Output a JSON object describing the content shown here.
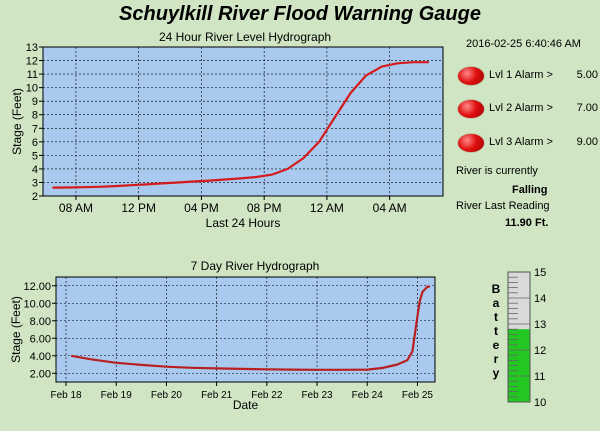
{
  "title": "Schuylkill River Flood Warning Gauge",
  "datetime": "2016-02-25 6:40:46 AM",
  "alarms": [
    {
      "label": "Lvl 1 Alarm >",
      "value": "5.00",
      "color": "#e01010"
    },
    {
      "label": "Lvl 2 Alarm >",
      "value": "7.00",
      "color": "#e01010"
    },
    {
      "label": "Lvl 3 Alarm >",
      "value": "9.00",
      "color": "#e01010"
    }
  ],
  "status": {
    "currently_label": "River is currently",
    "trend": "Falling",
    "last_reading_label": "River Last Reading",
    "last_reading": "11.90 Ft."
  },
  "battery": {
    "label": "Battery",
    "level": 12.8,
    "scale_min": 10,
    "scale_max": 15,
    "ticks": [
      "15",
      "14",
      "13",
      "12",
      "11",
      "10"
    ],
    "fill_color": "#22c722",
    "empty_color": "#d9d9d9"
  },
  "chart_data": [
    {
      "type": "line",
      "title": "24 Hour River Level Hydrograph",
      "xlabel": "Last 24 Hours",
      "ylabel": "Stage (Feet)",
      "ylim": [
        2,
        13
      ],
      "yticks": [
        "2",
        "3",
        "4",
        "5",
        "6",
        "7",
        "8",
        "9",
        "10",
        "11",
        "12",
        "13"
      ],
      "xticks": [
        {
          "x": 1.5,
          "label": "08 AM"
        },
        {
          "x": 5.5,
          "label": "12 PM"
        },
        {
          "x": 9.5,
          "label": "04 PM"
        },
        {
          "x": 13.5,
          "label": "08 PM"
        },
        {
          "x": 17.5,
          "label": "12 AM"
        },
        {
          "x": 21.5,
          "label": "04 AM"
        }
      ],
      "xlim": [
        -0.6,
        24.9
      ],
      "grid": true,
      "series_color": "#d41a1a",
      "series": [
        {
          "x": [
            0,
            1,
            2,
            3,
            4,
            5,
            6,
            7,
            8,
            9,
            10,
            11,
            12,
            13,
            14,
            15,
            16,
            17,
            18,
            19,
            20,
            21,
            22,
            23,
            24
          ],
          "values": [
            2.62,
            2.63,
            2.65,
            2.68,
            2.73,
            2.8,
            2.86,
            2.93,
            3.0,
            3.07,
            3.14,
            3.22,
            3.3,
            3.4,
            3.58,
            4.0,
            4.8,
            6.0,
            7.8,
            9.6,
            10.9,
            11.55,
            11.8,
            11.88,
            11.88
          ]
        }
      ]
    },
    {
      "type": "line",
      "title": "7 Day River Hydrograph",
      "xlabel": "Date",
      "ylabel": "Stage (Feet)",
      "ylim": [
        1,
        13
      ],
      "yticks": [
        "2.00",
        "4.00",
        "6.00",
        "8.00",
        "10.00",
        "12.00"
      ],
      "xticks": [
        {
          "x": 0,
          "label": "Feb 18"
        },
        {
          "x": 1,
          "label": "Feb 19"
        },
        {
          "x": 2,
          "label": "Feb 20"
        },
        {
          "x": 3,
          "label": "Feb 21"
        },
        {
          "x": 4,
          "label": "Feb 22"
        },
        {
          "x": 5,
          "label": "Feb 23"
        },
        {
          "x": 6,
          "label": "Feb 24"
        },
        {
          "x": 7,
          "label": "Feb 25"
        }
      ],
      "xlim": [
        -0.2,
        7.35
      ],
      "grid": true,
      "series_color": "#b82020",
      "series": [
        {
          "x": [
            0.1,
            0.5,
            1,
            1.5,
            2,
            2.5,
            3,
            3.5,
            4,
            4.5,
            5,
            5.5,
            6,
            6.3,
            6.6,
            6.8,
            6.9,
            6.95,
            7.0,
            7.05,
            7.1,
            7.2,
            7.25
          ],
          "values": [
            4.0,
            3.6,
            3.2,
            2.95,
            2.75,
            2.62,
            2.55,
            2.5,
            2.45,
            2.42,
            2.4,
            2.4,
            2.42,
            2.6,
            3.0,
            3.5,
            4.5,
            6.5,
            8.5,
            10.3,
            11.3,
            11.9,
            11.9
          ]
        }
      ]
    }
  ]
}
